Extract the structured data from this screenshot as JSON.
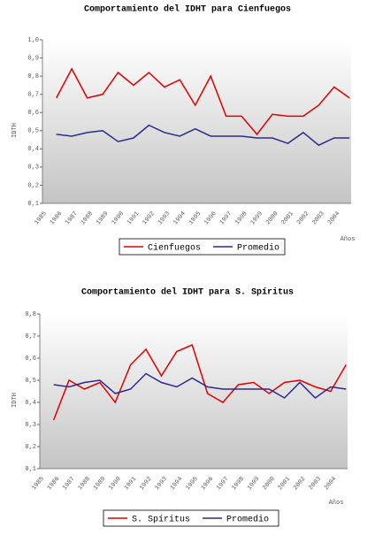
{
  "chart_data": [
    {
      "type": "line",
      "title": "Comportamiento del IDHT para Cienfuegos",
      "y_label": "IDTH",
      "x_label": "Años",
      "categories": [
        "1985",
        "1986",
        "1987",
        "1988",
        "1989",
        "1990",
        "1991",
        "1992",
        "1993",
        "1994",
        "1995",
        "1996",
        "1997",
        "1998",
        "1999",
        "2000",
        "2001",
        "2002",
        "2003",
        "2004"
      ],
      "series": [
        {
          "name": "Cienfuegos",
          "color": "#e00000",
          "values": [
            0.68,
            0.84,
            0.68,
            0.7,
            0.82,
            0.75,
            0.82,
            0.74,
            0.78,
            0.64,
            0.8,
            0.58,
            0.58,
            0.48,
            0.59,
            0.58,
            0.58,
            0.64,
            0.74,
            0.68
          ]
        },
        {
          "name": "Promedio",
          "color": "#2a2a90",
          "values": [
            0.48,
            0.47,
            0.49,
            0.5,
            0.44,
            0.46,
            0.53,
            0.49,
            0.47,
            0.51,
            0.47,
            0.47,
            0.47,
            0.46,
            0.46,
            0.43,
            0.49,
            0.42,
            0.46,
            0.46
          ]
        }
      ],
      "ylim": [
        0.1,
        1.0
      ],
      "yticks": [
        {
          "value": 0.1,
          "label": "0,1"
        },
        {
          "value": 0.2,
          "label": "0,2"
        },
        {
          "value": 0.3,
          "label": "0,3"
        },
        {
          "value": 0.4,
          "label": "0,4"
        },
        {
          "value": 0.5,
          "label": "0,5"
        },
        {
          "value": 0.6,
          "label": "0,6"
        },
        {
          "value": 0.7,
          "label": "0,7"
        },
        {
          "value": 0.8,
          "label": "0,8"
        },
        {
          "value": 0.9,
          "label": "0,9"
        },
        {
          "value": 1.0,
          "label": "1,0"
        }
      ]
    },
    {
      "type": "line",
      "title": "Comportamiento del IDHT para S. Spíritus",
      "y_label": "IDTH",
      "x_label": "Años",
      "categories": [
        "1985",
        "1986",
        "1987",
        "1988",
        "1989",
        "1990",
        "1991",
        "1992",
        "1993",
        "1994",
        "1995",
        "1996",
        "1997",
        "1998",
        "1999",
        "2000",
        "2001",
        "2002",
        "2003",
        "2004"
      ],
      "series": [
        {
          "name": "S. Spíritus",
          "color": "#e00000",
          "values": [
            0.32,
            0.5,
            0.46,
            0.49,
            0.4,
            0.57,
            0.64,
            0.52,
            0.63,
            0.66,
            0.44,
            0.4,
            0.48,
            0.49,
            0.44,
            0.49,
            0.5,
            0.47,
            0.45,
            0.57
          ]
        },
        {
          "name": "Promedio",
          "color": "#2a2a90",
          "values": [
            0.48,
            0.47,
            0.49,
            0.5,
            0.44,
            0.46,
            0.53,
            0.49,
            0.47,
            0.51,
            0.47,
            0.46,
            0.46,
            0.46,
            0.46,
            0.42,
            0.49,
            0.42,
            0.47,
            0.46
          ]
        }
      ],
      "ylim": [
        0.1,
        0.8
      ],
      "yticks": [
        {
          "value": 0.1,
          "label": "0,1"
        },
        {
          "value": 0.2,
          "label": "0,2"
        },
        {
          "value": 0.3,
          "label": "0,3"
        },
        {
          "value": 0.4,
          "label": "0,4"
        },
        {
          "value": 0.5,
          "label": "0,5"
        },
        {
          "value": 0.6,
          "label": "0,6"
        },
        {
          "value": 0.7,
          "label": "0,7"
        },
        {
          "value": 0.8,
          "label": "0,8"
        }
      ]
    }
  ]
}
